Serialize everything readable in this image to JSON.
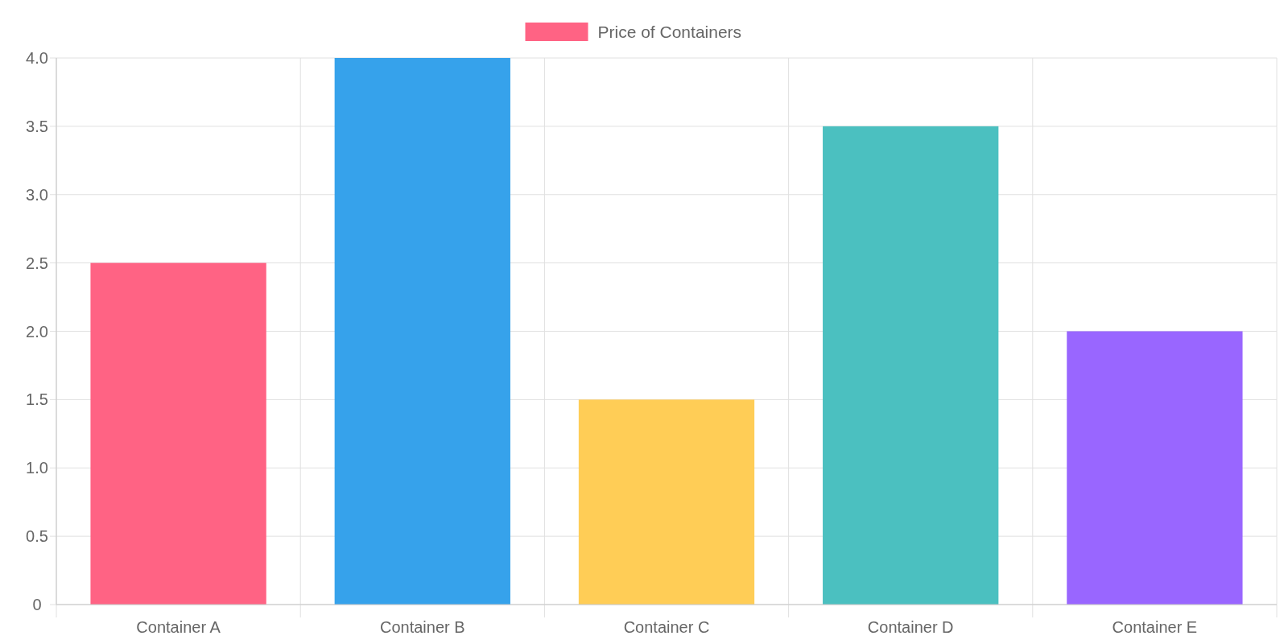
{
  "chart_data": {
    "type": "bar",
    "categories": [
      "Container A",
      "Container B",
      "Container C",
      "Container D",
      "Container E"
    ],
    "series": [
      {
        "name": "Price of Containers",
        "color": "#ff6384",
        "colors": [
          "#ff6384",
          "#36a2eb",
          "#ffcd56",
          "#4bc0c0",
          "#9966ff"
        ],
        "values": [
          2.5,
          4,
          1.5,
          3.5,
          2
        ]
      }
    ],
    "ylim": [
      0,
      4
    ],
    "yticks": [
      0,
      0.5,
      {
        "value": 1,
        "label": "1.0"
      },
      1.5,
      {
        "value": 2,
        "label": "2.0"
      },
      2.5,
      {
        "value": 3,
        "label": "3.0"
      },
      3.5,
      {
        "value": 4,
        "label": "4.0"
      }
    ],
    "grid": true,
    "legend": "top"
  }
}
